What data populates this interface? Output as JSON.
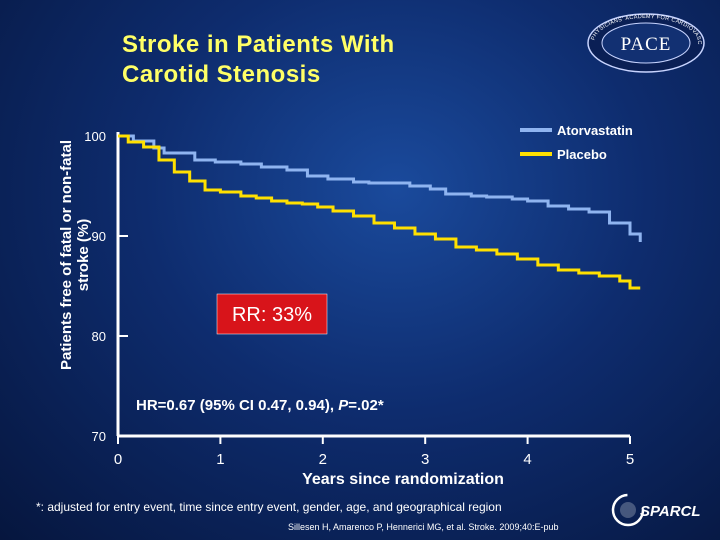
{
  "title_lines": [
    "Stroke in Patients With",
    "Carotid Stenosis"
  ],
  "logo": {
    "text": "PACE",
    "ring_text": "PHYSICIANS' ACADEMY FOR CARDIOVASCULAR EDUCATION"
  },
  "y_axis_label": "Patients free of fatal or non-fatal stroke (%)",
  "footnote": "*: adjusted for entry event, time since entry event, gender, age, and geographical region",
  "citation": "Sillesen H, Amarenco P, Hennerici MG, et al. Stroke. 2009;40:E-pub",
  "sparcl_logo": {
    "text": "SPARCL"
  },
  "colors": {
    "atorvastatin": "#8fb4f0",
    "placebo": "#ffe000",
    "title": "#ffff66",
    "rr_box": "#d8141a",
    "axis": "#ffffff"
  },
  "chart_data": {
    "type": "line",
    "title": "Stroke in Patients With Carotid Stenosis",
    "xlabel": "Years since randomization",
    "ylabel": "Patients free of fatal or non-fatal stroke (%)",
    "xlim": [
      0,
      5
    ],
    "ylim": [
      70,
      100
    ],
    "x_ticks": [
      "0",
      "1",
      "2",
      "3",
      "4",
      "5"
    ],
    "y_ticks": [
      "70",
      "80",
      "90",
      "100"
    ],
    "legend_position": "top-right",
    "series": [
      {
        "name": "Atorvastatin",
        "color": "#8fb4f0",
        "x": [
          0,
          0.15,
          0.35,
          0.45,
          0.75,
          0.95,
          1.2,
          1.4,
          1.65,
          1.85,
          2.05,
          2.3,
          2.45,
          2.65,
          2.85,
          3.05,
          3.2,
          3.45,
          3.6,
          3.85,
          4.0,
          4.2,
          4.4,
          4.6,
          4.8,
          5.0,
          5.1
        ],
        "y": [
          100,
          99.5,
          98.8,
          98.3,
          97.6,
          97.4,
          97.2,
          96.9,
          96.6,
          96.0,
          95.7,
          95.4,
          95.3,
          95.3,
          95.0,
          94.7,
          94.2,
          94.0,
          93.9,
          93.7,
          93.5,
          93.0,
          92.7,
          92.4,
          91.3,
          90.2,
          89.4
        ]
      },
      {
        "name": "Placebo",
        "color": "#ffe000",
        "x": [
          0,
          0.1,
          0.25,
          0.4,
          0.55,
          0.7,
          0.85,
          1.0,
          1.2,
          1.35,
          1.5,
          1.65,
          1.8,
          1.95,
          2.1,
          2.3,
          2.5,
          2.7,
          2.9,
          3.1,
          3.3,
          3.5,
          3.7,
          3.9,
          4.1,
          4.3,
          4.5,
          4.7,
          4.9,
          5.0,
          5.1
        ],
        "y": [
          100,
          99.4,
          98.9,
          97.6,
          96.4,
          95.5,
          94.6,
          94.4,
          94.0,
          93.8,
          93.5,
          93.3,
          93.2,
          92.9,
          92.5,
          92.0,
          91.3,
          90.8,
          90.2,
          89.7,
          88.9,
          88.6,
          88.2,
          87.7,
          87.1,
          86.6,
          86.3,
          86.0,
          85.5,
          84.8,
          84.8
        ]
      }
    ],
    "annotations": [
      {
        "text": "RR: 33%",
        "type": "boxed-label"
      },
      {
        "text": "HR=0.67 (95% CI 0.47, 0.94), ",
        "italic_text": "P",
        "suffix": "=.02*"
      }
    ]
  }
}
